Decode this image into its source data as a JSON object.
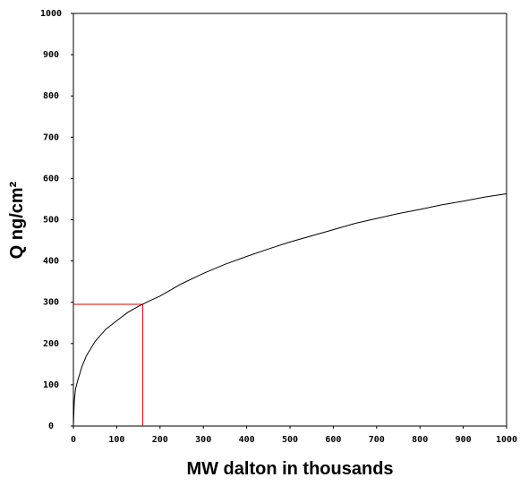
{
  "chart_data": {
    "type": "line",
    "title": "",
    "xlabel": "MW dalton in thousands",
    "ylabel": "Q ng/cm²",
    "xlim": [
      0,
      1000
    ],
    "ylim": [
      0,
      1000
    ],
    "x_ticks": [
      "0",
      "100",
      "200",
      "300",
      "400",
      "500",
      "600",
      "700",
      "800",
      "900",
      "1000"
    ],
    "y_ticks": [
      "0",
      "100",
      "200",
      "300",
      "400",
      "500",
      "600",
      "700",
      "800",
      "900",
      "1000"
    ],
    "grid": false,
    "legend": "none",
    "series": [
      {
        "color": "#000000",
        "x": [
          1,
          2,
          5,
          10,
          20,
          30,
          50,
          75,
          100,
          125,
          150,
          175,
          200,
          250,
          300,
          350,
          400,
          450,
          500,
          550,
          600,
          650,
          700,
          750,
          800,
          850,
          900,
          950,
          1000
        ],
        "y": [
          30,
          60,
          90,
          110,
          145,
          170,
          205,
          235,
          255,
          275,
          290,
          303,
          315,
          345,
          370,
          392,
          411,
          429,
          446,
          461,
          476,
          491,
          503,
          515,
          525,
          536,
          545,
          555,
          563
        ]
      }
    ],
    "annotations": [
      {
        "type": "reference-lines",
        "color": "#dd0000",
        "x": 160,
        "y": 295
      }
    ]
  }
}
